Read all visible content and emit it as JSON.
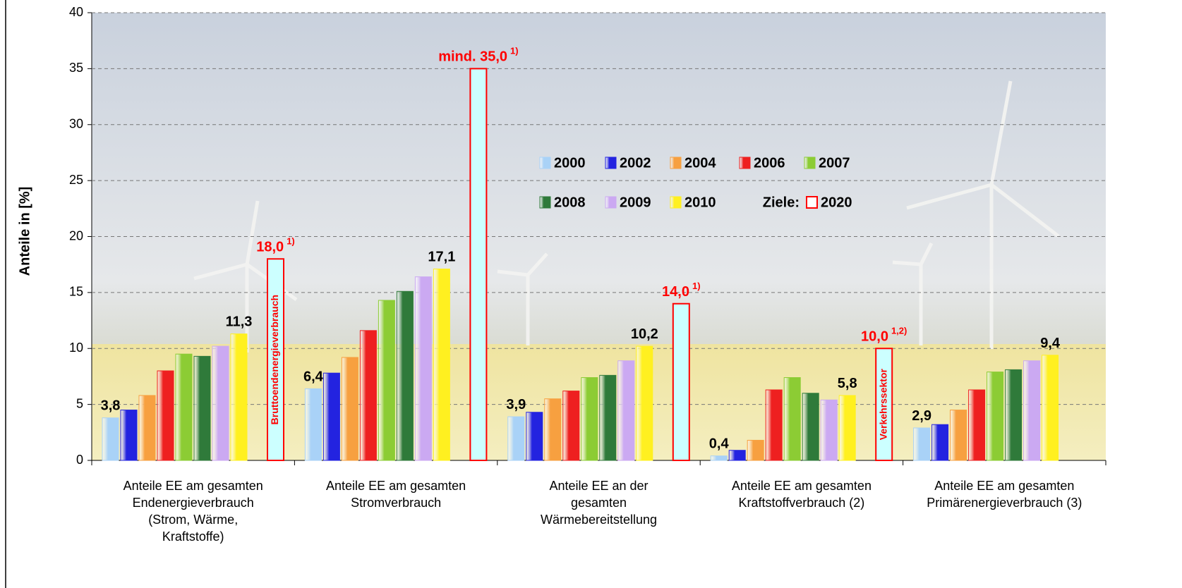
{
  "chart_data": {
    "type": "bar",
    "y_label": "Anteile in [%]",
    "categories": [
      "Anteile EE am gesamten\nEndenergieverbrauch\n(Strom, Wärme,\nKraftstoffe)",
      "Anteile EE am gesamten\nStromverbrauch",
      "Anteile EE an der\ngesamten\nWärmebereitstellung",
      "Anteile EE am gesamten\nKraftstoffverbrauch (2)",
      "Anteile EE am gesamten\nPrimärenergieverbrauch (3)"
    ],
    "ylim": [
      0,
      40
    ],
    "yticks": [
      0,
      5,
      10,
      15,
      20,
      25,
      30,
      35,
      40
    ],
    "grid": true,
    "legend_note": "Ziele:",
    "series": [
      {
        "name": "2000",
        "color": "#a9d2f7",
        "values": [
          3.8,
          6.4,
          3.9,
          0.4,
          2.9
        ],
        "value_labels": [
          "3,8",
          "6,4",
          "3,9",
          "0,4",
          "2,9"
        ]
      },
      {
        "name": "2002",
        "color": "#2323e0",
        "values": [
          4.5,
          7.8,
          4.3,
          0.9,
          3.2
        ]
      },
      {
        "name": "2004",
        "color": "#f7a040",
        "values": [
          5.8,
          9.2,
          5.5,
          1.8,
          4.5
        ]
      },
      {
        "name": "2006",
        "color": "#ee2020",
        "values": [
          8.0,
          11.6,
          6.2,
          6.3,
          6.3
        ]
      },
      {
        "name": "2007",
        "color": "#8ccc34",
        "values": [
          9.5,
          14.3,
          7.4,
          7.4,
          7.9
        ]
      },
      {
        "name": "2008",
        "color": "#2f7a3a",
        "values": [
          9.3,
          15.1,
          7.6,
          6.0,
          8.1
        ]
      },
      {
        "name": "2009",
        "color": "#cba9f2",
        "values": [
          10.2,
          16.4,
          8.9,
          5.4,
          8.9
        ]
      },
      {
        "name": "2010",
        "color": "#fff020",
        "values": [
          11.3,
          17.1,
          10.2,
          5.8,
          9.4
        ],
        "value_labels": [
          "11,3",
          "17,1",
          "10,2",
          "5,8",
          "9,4"
        ]
      },
      {
        "name": "2020",
        "color": "#ccffff",
        "stroke": "#ff0000",
        "values": [
          18.0,
          35.0,
          14.0,
          10.0,
          null
        ],
        "value_labels": [
          "18,0",
          "mind. 35,0",
          "14,0",
          "10,0",
          null
        ],
        "value_label_notes": [
          "1)",
          "1)",
          "1)",
          "1,2)",
          null
        ],
        "bar_texts": [
          "Bruttoendenergieverbrauch",
          null,
          null,
          "Verkehrssektor",
          null
        ]
      }
    ]
  }
}
